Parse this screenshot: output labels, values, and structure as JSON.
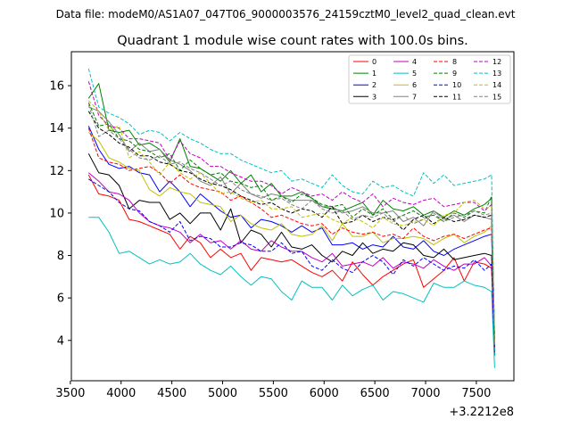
{
  "suptitle": "Data file: modeM0/AS1A07_047T06_9000003576_24159cztM0_level2_quad_clean.evt",
  "chart_data": {
    "type": "line",
    "title": "Quadrant 1 module wise count rates with 100.0s bins.",
    "xlabel": "",
    "ylabel": "",
    "x_offset_label": "+3.2212e8",
    "xlim": [
      3510,
      7870
    ],
    "ylim": [
      2.1,
      17.6
    ],
    "xticks": [
      3500,
      4000,
      4500,
      5000,
      5500,
      6000,
      6500,
      7000,
      7500
    ],
    "yticks": [
      4,
      6,
      8,
      10,
      12,
      14,
      16
    ],
    "legend_position": "top-right",
    "legend_columns": 4,
    "x": [
      3680,
      3780,
      3880,
      3980,
      4080,
      4180,
      4280,
      4380,
      4480,
      4580,
      4680,
      4780,
      4880,
      4980,
      5080,
      5180,
      5280,
      5380,
      5480,
      5580,
      5680,
      5780,
      5880,
      5980,
      6080,
      6180,
      6280,
      6380,
      6480,
      6580,
      6680,
      6780,
      6880,
      6980,
      7080,
      7180,
      7280,
      7380,
      7480,
      7580,
      7650,
      7680
    ],
    "series": [
      {
        "name": "0",
        "color": "#ff0000",
        "dash": "solid",
        "values": [
          11.8,
          10.9,
          10.8,
          10.6,
          9.7,
          9.6,
          9.4,
          9.2,
          9.0,
          8.3,
          8.9,
          8.6,
          7.9,
          8.3,
          7.9,
          8.1,
          7.3,
          7.9,
          7.8,
          7.7,
          7.8,
          7.5,
          7.2,
          7.0,
          7.3,
          6.8,
          7.7,
          7.1,
          6.6,
          7.0,
          7.3,
          7.6,
          7.8,
          6.5,
          6.9,
          7.3,
          7.9,
          6.8,
          7.7,
          7.6,
          7.4,
          3.6
        ]
      },
      {
        "name": "1",
        "color": "#008000",
        "dash": "solid",
        "values": [
          15.4,
          16.1,
          13.9,
          13.8,
          13.9,
          13.2,
          13.3,
          13.0,
          12.4,
          13.5,
          12.2,
          12.1,
          11.8,
          11.5,
          12.0,
          11.4,
          11.8,
          11.0,
          11.4,
          10.8,
          10.8,
          11.0,
          10.7,
          10.3,
          10.2,
          10.1,
          10.3,
          10.5,
          9.9,
          10.6,
          10.2,
          10.1,
          10.3,
          9.9,
          10.1,
          9.8,
          10.1,
          9.9,
          10.2,
          10.4,
          10.7,
          4.0
        ]
      },
      {
        "name": "2",
        "color": "#0000ff",
        "dash": "solid",
        "values": [
          14.1,
          13.0,
          12.3,
          12.1,
          12.2,
          11.9,
          11.8,
          11.0,
          11.5,
          11.0,
          10.3,
          10.9,
          10.5,
          10.1,
          9.8,
          9.9,
          9.3,
          9.7,
          9.6,
          9.4,
          9.1,
          9.4,
          9.1,
          9.3,
          8.5,
          8.5,
          8.6,
          8.3,
          8.5,
          8.4,
          8.9,
          8.4,
          8.3,
          8.7,
          8.2,
          8.0,
          8.3,
          8.5,
          8.7,
          8.9,
          9.0,
          3.5
        ]
      },
      {
        "name": "3",
        "color": "#000000",
        "dash": "solid",
        "values": [
          12.8,
          11.9,
          11.8,
          11.3,
          10.2,
          10.6,
          10.5,
          10.5,
          9.7,
          10.0,
          9.5,
          10.0,
          10.0,
          9.2,
          10.2,
          8.6,
          9.2,
          9.0,
          8.4,
          9.1,
          8.4,
          8.3,
          8.5,
          8.0,
          7.7,
          8.2,
          8.0,
          8.6,
          8.1,
          8.3,
          8.2,
          8.6,
          8.5,
          8.0,
          7.9,
          8.3,
          7.8,
          7.9,
          8.0,
          8.1,
          8.0,
          3.3
        ]
      },
      {
        "name": "4",
        "color": "#c000c0",
        "dash": "solid",
        "values": [
          11.9,
          11.5,
          11.0,
          10.9,
          10.6,
          10.0,
          9.6,
          9.4,
          9.3,
          9.1,
          8.6,
          9.0,
          8.6,
          8.7,
          8.3,
          8.7,
          8.3,
          8.2,
          8.7,
          8.4,
          8.2,
          8.2,
          7.9,
          7.7,
          8.1,
          7.5,
          7.6,
          7.7,
          7.5,
          7.9,
          7.4,
          7.7,
          7.6,
          7.4,
          7.8,
          7.5,
          7.3,
          7.6,
          7.6,
          7.9,
          7.5,
          3.7
        ]
      },
      {
        "name": "5",
        "color": "#00c0c0",
        "dash": "solid",
        "values": [
          9.8,
          9.8,
          9.1,
          8.1,
          8.2,
          7.9,
          7.6,
          7.8,
          7.6,
          7.7,
          8.1,
          7.6,
          7.3,
          7.1,
          7.5,
          7.0,
          6.6,
          7.0,
          6.9,
          6.3,
          5.9,
          6.8,
          6.5,
          6.5,
          5.9,
          6.6,
          6.1,
          6.4,
          6.6,
          5.9,
          6.3,
          6.2,
          6.0,
          5.8,
          6.7,
          6.5,
          6.5,
          6.8,
          6.6,
          6.5,
          6.3,
          2.7
        ]
      },
      {
        "name": "6",
        "color": "#c0c000",
        "dash": "solid",
        "values": [
          13.8,
          13.4,
          12.6,
          12.4,
          12.1,
          12.0,
          11.1,
          10.8,
          11.2,
          11.0,
          10.9,
          10.5,
          10.4,
          10.3,
          9.6,
          9.9,
          9.5,
          9.3,
          9.2,
          9.5,
          9.0,
          8.9,
          9.0,
          9.4,
          8.7,
          9.5,
          8.9,
          8.9,
          9.1,
          8.6,
          8.8,
          8.8,
          8.9,
          8.8,
          8.5,
          8.8,
          9.0,
          8.6,
          8.9,
          9.1,
          9.4,
          3.8
        ]
      },
      {
        "name": "7",
        "color": "#808080",
        "dash": "solid",
        "values": [
          15.0,
          14.8,
          14.3,
          13.7,
          12.9,
          13.3,
          12.9,
          13.0,
          12.5,
          12.3,
          12.0,
          11.5,
          11.3,
          11.7,
          10.9,
          11.4,
          10.9,
          10.7,
          10.9,
          10.8,
          10.6,
          10.6,
          10.6,
          10.3,
          10.3,
          10.0,
          10.1,
          10.3,
          10.0,
          10.0,
          10.1,
          9.6,
          9.8,
          9.4,
          10.1,
          9.7,
          9.9,
          9.6,
          9.9,
          9.8,
          9.7,
          3.9
        ]
      },
      {
        "name": "8",
        "color": "#ff0000",
        "dash": "dashed",
        "values": [
          14.0,
          12.6,
          12.4,
          12.3,
          12.0,
          12.1,
          12.2,
          11.9,
          11.4,
          11.8,
          11.4,
          11.2,
          11.1,
          11.0,
          10.6,
          10.8,
          10.5,
          10.2,
          9.8,
          9.9,
          9.7,
          9.5,
          9.4,
          9.5,
          9.0,
          9.3,
          9.1,
          9.0,
          9.1,
          8.9,
          9.0,
          8.8,
          9.3,
          8.9,
          8.7,
          8.9,
          9.0,
          8.8,
          9.0,
          9.2,
          9.3,
          3.7
        ]
      },
      {
        "name": "9",
        "color": "#008000",
        "dash": "dashed",
        "values": [
          15.2,
          14.1,
          14.2,
          13.5,
          13.4,
          13.0,
          12.9,
          12.6,
          12.8,
          12.0,
          12.5,
          12.1,
          11.8,
          11.9,
          11.5,
          11.4,
          11.2,
          11.3,
          10.6,
          10.8,
          10.5,
          10.9,
          10.7,
          10.4,
          10.3,
          10.4,
          9.8,
          10.2,
          9.9,
          10.2,
          9.7,
          9.9,
          10.1,
          9.8,
          9.9,
          9.6,
          10.0,
          9.8,
          10.1,
          10.0,
          10.8,
          4.1
        ]
      },
      {
        "name": "10",
        "color": "#0000ff",
        "dash": "dashed",
        "values": [
          11.6,
          11.3,
          11.0,
          10.5,
          10.2,
          10.1,
          9.6,
          9.4,
          9.1,
          9.6,
          8.7,
          8.9,
          8.8,
          8.4,
          8.4,
          8.6,
          8.5,
          8.2,
          8.2,
          8.6,
          8.1,
          8.2,
          7.5,
          7.3,
          7.8,
          7.4,
          7.2,
          7.7,
          8.0,
          7.7,
          7.1,
          7.8,
          7.5,
          7.9,
          7.6,
          7.3,
          7.5,
          7.4,
          7.8,
          7.3,
          7.6,
          3.4
        ]
      },
      {
        "name": "11",
        "color": "#000000",
        "dash": "dashed",
        "values": [
          14.8,
          14.0,
          13.7,
          13.3,
          13.1,
          12.7,
          12.7,
          12.4,
          12.3,
          12.0,
          11.9,
          11.6,
          11.4,
          11.3,
          11.1,
          10.8,
          10.6,
          10.4,
          10.5,
          10.2,
          10.0,
          10.2,
          10.1,
          9.8,
          10.3,
          9.5,
          9.6,
          9.9,
          9.6,
          9.8,
          9.7,
          9.2,
          9.7,
          9.9,
          9.5,
          9.8,
          9.6,
          9.7,
          9.9,
          9.8,
          9.9,
          3.6
        ]
      },
      {
        "name": "12",
        "color": "#c000c0",
        "dash": "dashed",
        "values": [
          16.2,
          14.6,
          14.1,
          14.0,
          13.5,
          13.5,
          13.4,
          13.3,
          12.5,
          13.4,
          12.8,
          12.6,
          12.2,
          12.2,
          11.9,
          11.7,
          11.5,
          11.5,
          11.3,
          10.9,
          11.2,
          11.0,
          10.8,
          10.9,
          10.6,
          11.0,
          10.7,
          10.5,
          10.9,
          10.3,
          10.7,
          10.5,
          10.4,
          10.6,
          10.7,
          10.3,
          10.4,
          10.5,
          10.5,
          10.1,
          10.4,
          3.5
        ]
      },
      {
        "name": "13",
        "color": "#00c0c0",
        "dash": "dashed",
        "values": [
          16.8,
          15.0,
          14.7,
          14.5,
          14.2,
          13.7,
          13.9,
          13.8,
          13.4,
          13.8,
          13.5,
          13.3,
          13.0,
          12.8,
          12.8,
          12.5,
          12.3,
          12.1,
          11.9,
          12.0,
          11.5,
          11.6,
          11.4,
          11.2,
          11.8,
          11.3,
          11.0,
          10.9,
          11.5,
          11.2,
          11.3,
          11.0,
          10.8,
          11.9,
          11.4,
          11.8,
          11.3,
          11.4,
          11.5,
          11.6,
          11.8,
          3.2
        ]
      },
      {
        "name": "14",
        "color": "#c0c000",
        "dash": "dashed",
        "values": [
          15.3,
          14.8,
          13.9,
          14.1,
          12.6,
          12.9,
          12.4,
          11.8,
          12.4,
          11.9,
          11.6,
          11.9,
          11.4,
          10.9,
          11.0,
          10.7,
          10.5,
          10.6,
          10.2,
          10.2,
          10.3,
          9.8,
          9.9,
          10.0,
          9.7,
          9.5,
          9.8,
          9.6,
          9.3,
          9.8,
          9.5,
          9.4,
          9.6,
          9.7,
          9.4,
          9.9,
          10.0,
          10.5,
          10.6,
          10.2,
          10.3,
          3.9
        ]
      },
      {
        "name": "15",
        "color": "#808080",
        "dash": "dashed",
        "values": [
          15.1,
          13.6,
          13.9,
          13.5,
          13.0,
          12.6,
          12.5,
          12.7,
          12.3,
          12.4,
          12.1,
          11.9,
          11.6,
          11.3,
          11.5,
          11.1,
          10.9,
          10.8,
          10.6,
          10.7,
          10.4,
          10.2,
          10.6,
          10.2,
          10.0,
          10.1,
          9.7,
          9.9,
          9.8,
          10.0,
          9.6,
          9.9,
          9.5,
          9.7,
          10.0,
          9.6,
          9.8,
          9.9,
          10.1,
          9.9,
          10.0,
          3.8
        ]
      }
    ]
  }
}
